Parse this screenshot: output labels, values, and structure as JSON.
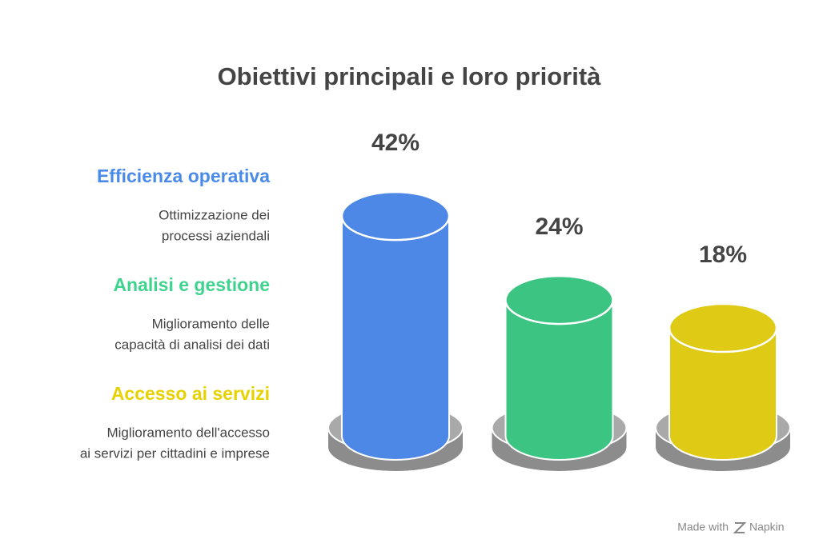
{
  "chart_data": {
    "type": "cylinder-bar",
    "title": "Obiettivi principali e loro priorità",
    "categories": [
      "Efficienza operativa",
      "Analisi e gestione",
      "Accesso ai servizi"
    ],
    "descriptions": [
      [
        "Ottimizzazione dei",
        "processi aziendali"
      ],
      [
        "Miglioramento delle",
        "capacità di analisi dei dati"
      ],
      [
        "Miglioramento dell'accesso",
        "ai servizi per cittadini e imprese"
      ]
    ],
    "values": [
      42,
      24,
      18
    ],
    "value_labels": [
      "42%",
      "24%",
      "18%"
    ],
    "colors": [
      "#4e88e6",
      "#3cc582",
      "#dfca16"
    ],
    "label_colors": [
      "#4a8bea",
      "#3ed48e",
      "#e6d200"
    ]
  },
  "footer": {
    "prefix": "Made with",
    "brand": "Napkin"
  }
}
